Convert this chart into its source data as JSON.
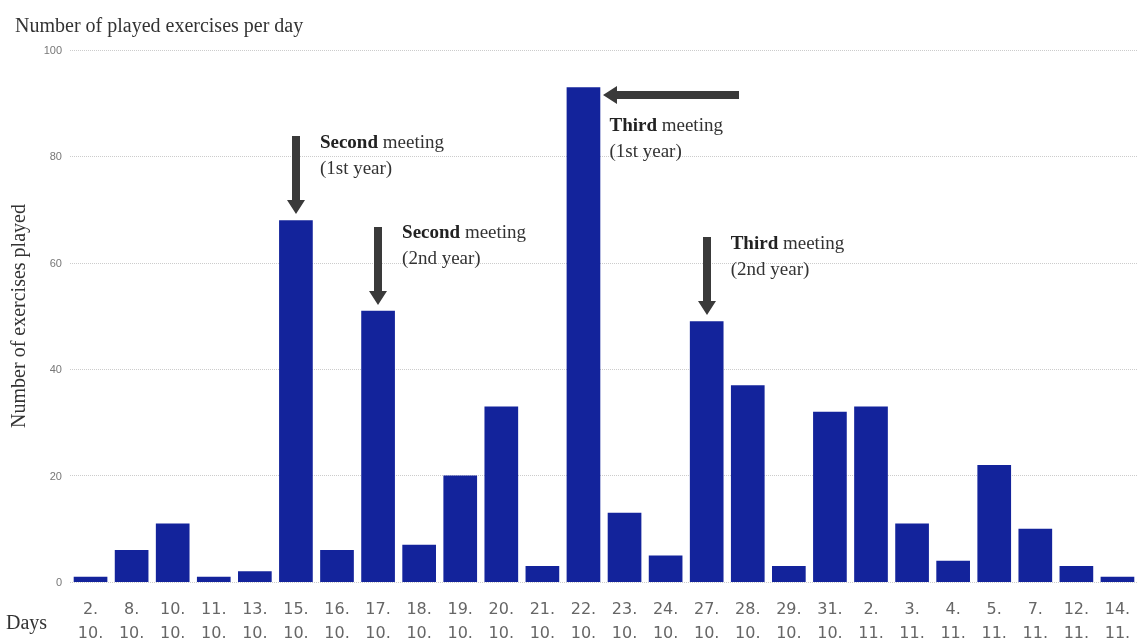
{
  "chart_data": {
    "type": "bar",
    "title": "Number of played exercises per day",
    "xlabel": "Days",
    "ylabel": "Number of exercises played",
    "categories": [
      "2.\n10.",
      "8.\n10.",
      "10.\n10.",
      "11.\n10.",
      "13.\n10.",
      "15.\n10.",
      "16.\n10.",
      "17.\n10.",
      "18.\n10.",
      "19.\n10.",
      "20.\n10.",
      "21.\n10.",
      "22.\n10.",
      "23.\n10.",
      "24.\n10.",
      "27.\n10.",
      "28.\n10.",
      "29.\n10.",
      "31.\n10.",
      "2.\n11.",
      "3.\n11.",
      "4.\n11.",
      "5.\n11.",
      "7.\n11.",
      "12.\n11.",
      "14.\n11."
    ],
    "values": [
      1,
      6,
      11,
      1,
      2,
      68,
      6,
      51,
      7,
      20,
      33,
      3,
      93,
      13,
      5,
      49,
      37,
      3,
      32,
      33,
      11,
      4,
      22,
      10,
      3,
      1
    ],
    "color": "#13239b",
    "ylim": [
      0,
      100
    ],
    "yticks": [
      0,
      20,
      40,
      60,
      80,
      100
    ],
    "grid": "y",
    "annotations": [
      {
        "text": "Second meeting\n(1st year)",
        "x": "15.\n10.",
        "y": 68
      },
      {
        "text": "Second meeting\n(2nd year)",
        "x": "17.\n10.",
        "y": 51
      },
      {
        "text": "Third meeting\n(1st year)",
        "x": "22.\n10.",
        "y": 93
      },
      {
        "text": "Third meeting\n(2nd year)",
        "x": "27.\n10.",
        "y": 49
      }
    ]
  }
}
